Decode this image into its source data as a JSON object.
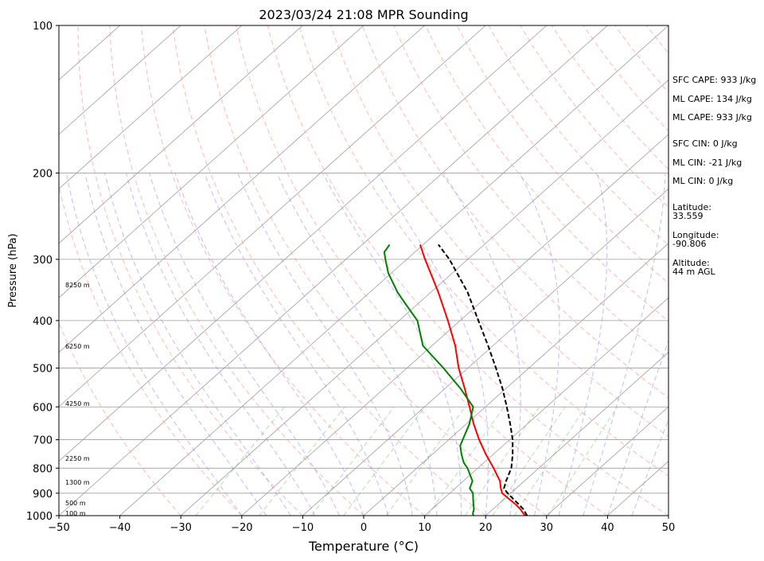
{
  "chart_data": {
    "type": "line",
    "title": "2023/03/24 21:08 MPR Sounding",
    "xlabel": "Temperature (°C)",
    "ylabel": "Pressure (hPa)",
    "xlim": [
      -50,
      50
    ],
    "ylim": [
      1000,
      100
    ],
    "y_scale": "log",
    "grid": true,
    "x_ticks": [
      "−50",
      "−40",
      "−30",
      "−20",
      "−10",
      "0",
      "10",
      "20",
      "30",
      "40",
      "50"
    ],
    "y_ticks": [
      "100",
      "200",
      "300",
      "400",
      "500",
      "600",
      "700",
      "800",
      "900",
      "1000"
    ],
    "height_labels": [
      "100 m",
      "500 m",
      "1300 m",
      "2250 m",
      "4250 m",
      "6250 m",
      "8250 m"
    ],
    "annotations": [
      "SFC CAPE: 933 J/kg",
      "ML CAPE: 134 J/kg",
      "ML CAPE: 933 J/kg",
      "SFC CIN: 0 J/kg",
      "ML CIN: -21 J/kg",
      "ML CIN: 0 J/kg",
      "Latitude:",
      "33.559",
      "Longitude:",
      "-90.806",
      "Altitude:",
      "44 m AGL"
    ],
    "series": [
      {
        "color": "#ff0000",
        "pressure": [
          1000,
          990,
          970,
          950,
          925,
          900,
          880,
          850,
          800,
          750,
          700,
          650,
          600,
          550,
          500,
          450,
          400,
          350,
          300,
          280
        ],
        "temperature": [
          26.5,
          25.8,
          24.5,
          23.0,
          20.8,
          18.6,
          17.5,
          16.0,
          12.6,
          8.8,
          5.0,
          1.2,
          -2.6,
          -6.8,
          -11.5,
          -16.2,
          -22.0,
          -28.8,
          -37.0,
          -40.5
        ]
      },
      {
        "color": "#008000",
        "pressure": [
          1000,
          990,
          970,
          950,
          925,
          900,
          880,
          850,
          800,
          780,
          750,
          720,
          700,
          650,
          600,
          550,
          500,
          450,
          400,
          370,
          350,
          320,
          300,
          290,
          280
        ],
        "temperature": [
          18.0,
          17.5,
          16.9,
          16.0,
          14.9,
          13.8,
          12.4,
          11.5,
          8.3,
          6.7,
          4.8,
          3.0,
          2.3,
          0.5,
          -2.0,
          -7.5,
          -14.0,
          -21.5,
          -27.0,
          -32.0,
          -35.5,
          -40.5,
          -43.5,
          -45.0,
          -45.5
        ]
      },
      {
        "color": "#000000",
        "style": "dashed",
        "pressure": [
          1000,
          970,
          950,
          925,
          900,
          880,
          850,
          800,
          750,
          700,
          650,
          600,
          550,
          500,
          450,
          400,
          350,
          300,
          280
        ],
        "temperature": [
          26.8,
          25.0,
          23.5,
          21.5,
          19.5,
          18.0,
          17.0,
          15.5,
          13.2,
          10.5,
          7.2,
          3.5,
          -0.6,
          -5.4,
          -10.8,
          -17.0,
          -24.0,
          -33.0,
          -37.5
        ]
      }
    ]
  }
}
